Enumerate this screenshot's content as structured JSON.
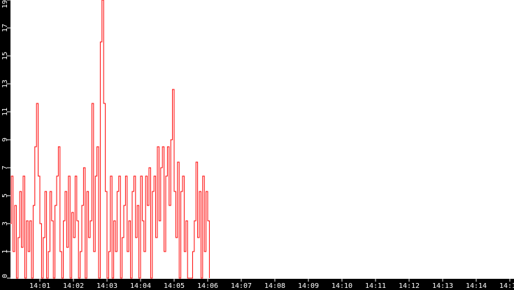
{
  "chart_data": {
    "type": "line",
    "title": "",
    "xlabel": "",
    "ylabel": "",
    "ylim": [
      0,
      19
    ],
    "grid": false,
    "colors": {
      "series": "#ff0000",
      "axis_bg": "#000000",
      "axis_text": "#ffffff",
      "plot_bg": "#ffffff"
    },
    "y_ticks": [
      "0",
      "1",
      "3",
      "5",
      "7",
      "9",
      "11",
      "13",
      "15",
      "17",
      "19"
    ],
    "x_ticks": [
      "14:01",
      "14:02",
      "14:03",
      "14:04",
      "14:05",
      "14:06",
      "14:07",
      "14:08",
      "14:09",
      "14:10",
      "14:11",
      "14:12",
      "14:13",
      "14:14",
      "14:15"
    ],
    "x_start": "14:00:06",
    "x_step_seconds": 3,
    "values": [
      3,
      6.4,
      1,
      4.3,
      0,
      2,
      5.3,
      1.3,
      6.4,
      0,
      3.2,
      1,
      3.2,
      0,
      4.3,
      8.5,
      11.6,
      6.4,
      3,
      0,
      2,
      5.3,
      0,
      1,
      5.3,
      3.2,
      0,
      4.3,
      6.4,
      8.5,
      1,
      0,
      3.2,
      5.3,
      1.3,
      6.4,
      0,
      3.8,
      2,
      6.4,
      3.2,
      0,
      1,
      4.3,
      7,
      0,
      5.3,
      2,
      3.2,
      11.6,
      1,
      6.4,
      8.5,
      0,
      16,
      19,
      11.6,
      5.3,
      0,
      1,
      6.4,
      0,
      3.2,
      1,
      5.3,
      6.4,
      0,
      2,
      4.3,
      6.4,
      1,
      3.2,
      0,
      5.3,
      6.4,
      2,
      4.3,
      0,
      6.4,
      3.2,
      1,
      6.4,
      4.3,
      7,
      0,
      5.3,
      6.4,
      2,
      8.5,
      3.2,
      7,
      8.5,
      1,
      6.4,
      8.5,
      4.3,
      9,
      12.6,
      5.3,
      2,
      7.4,
      0,
      5.3,
      6.4,
      1,
      3.2,
      0,
      0,
      0,
      1,
      3.2,
      7.4,
      2,
      5.3,
      0,
      6.4,
      1,
      5.3,
      3.2,
      0
    ]
  }
}
